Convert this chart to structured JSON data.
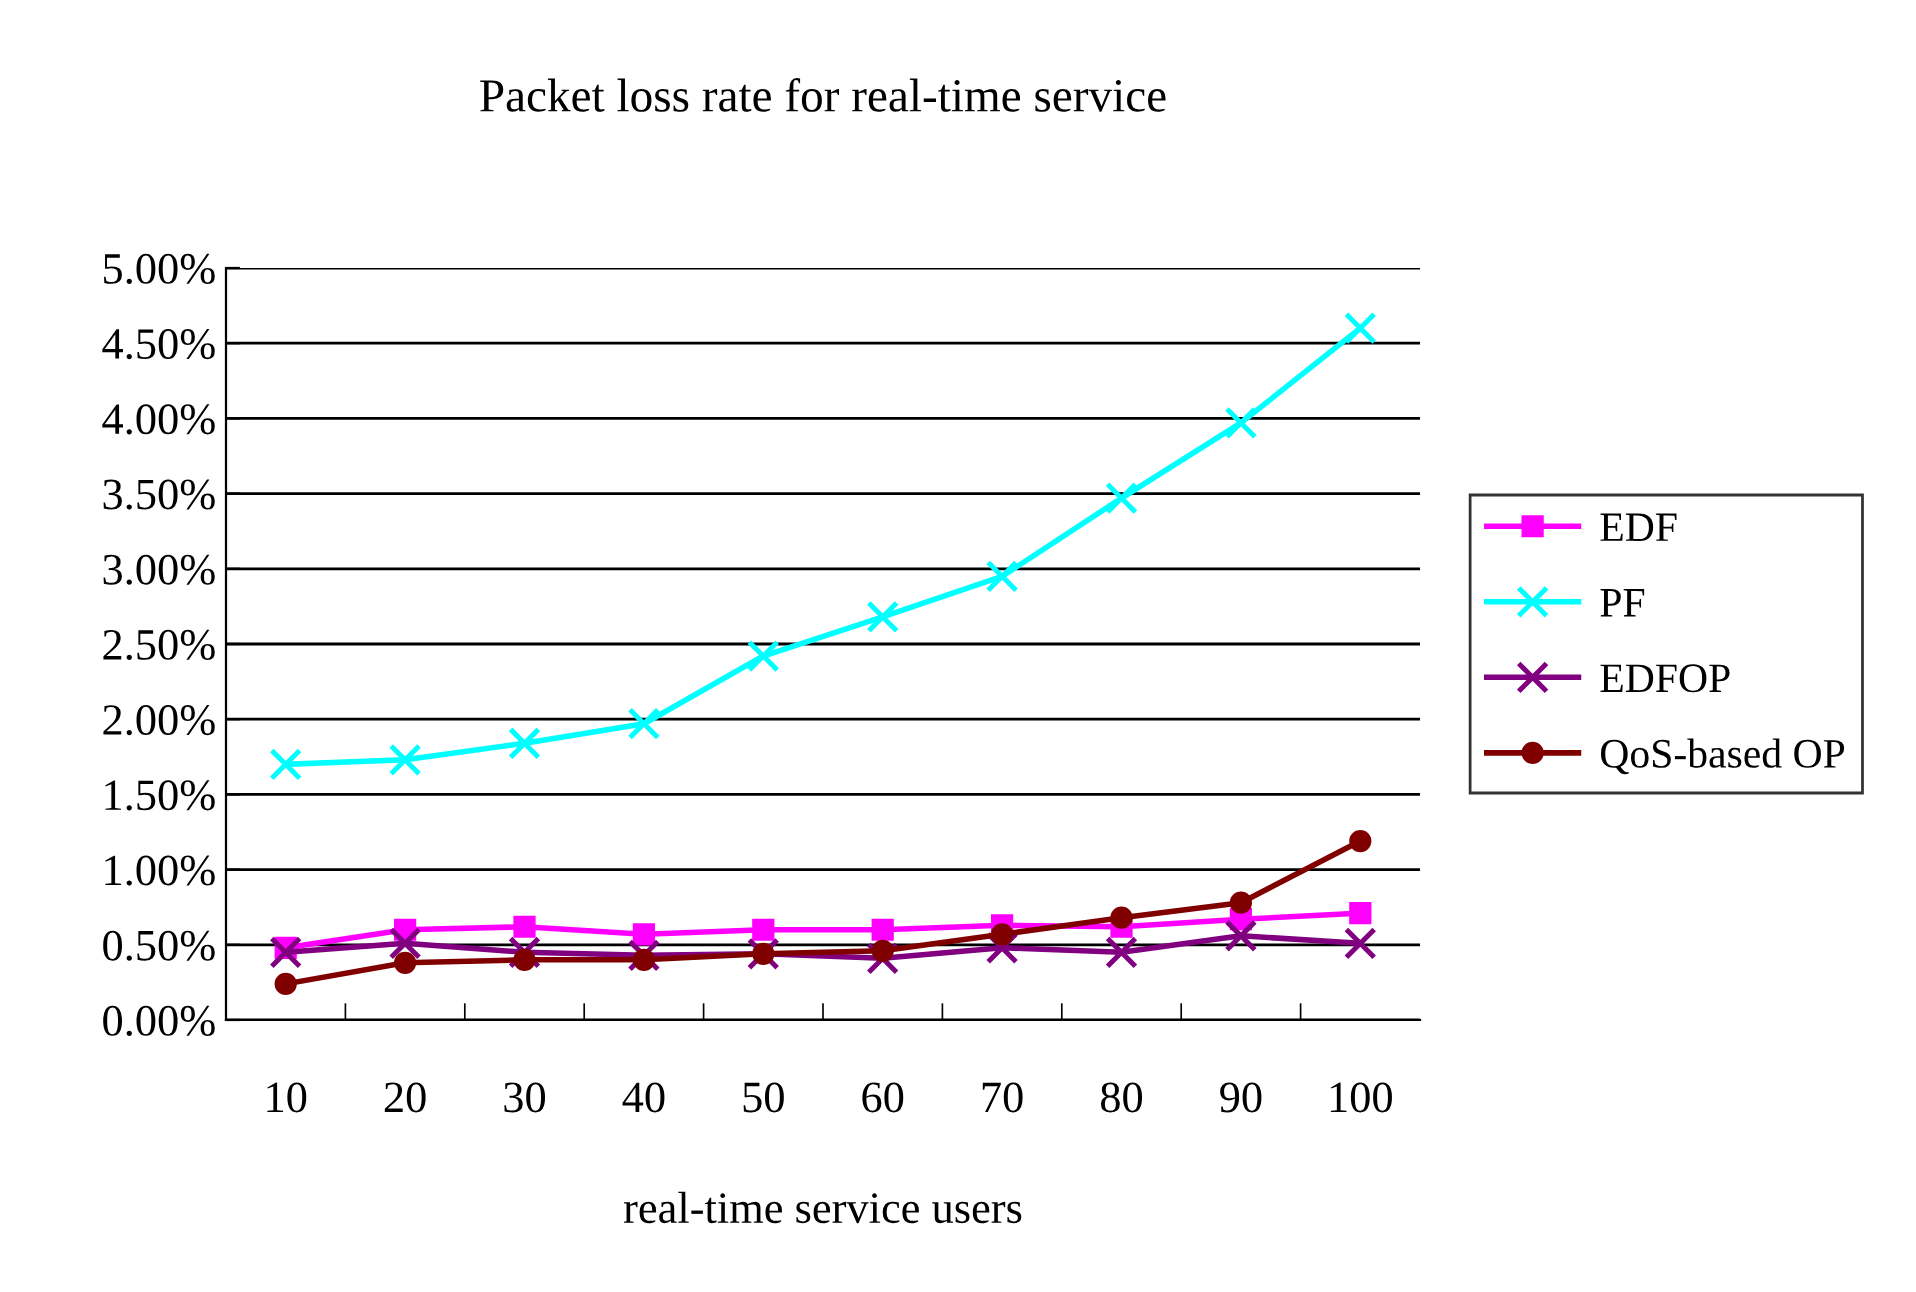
{
  "chart_data": {
    "type": "line",
    "title": "Packet loss rate for real-time service",
    "xlabel": "real-time service users",
    "categories": [
      "10",
      "20",
      "30",
      "40",
      "50",
      "60",
      "70",
      "80",
      "90",
      "100"
    ],
    "series": [
      {
        "name": "EDF",
        "color": "#ff00ff",
        "marker": "square",
        "values": [
          0.48,
          0.6,
          0.62,
          0.57,
          0.6,
          0.6,
          0.63,
          0.62,
          0.67,
          0.71
        ]
      },
      {
        "name": "PF",
        "color": "#00ffff",
        "marker": "cross",
        "values": [
          1.7,
          1.73,
          1.84,
          1.97,
          2.42,
          2.68,
          2.95,
          3.47,
          3.97,
          4.6
        ]
      },
      {
        "name": "EDFOP",
        "color": "#800080",
        "marker": "cross",
        "values": [
          0.45,
          0.51,
          0.45,
          0.43,
          0.44,
          0.41,
          0.48,
          0.45,
          0.56,
          0.51
        ]
      },
      {
        "name": "QoS-based OP",
        "color": "#800000",
        "marker": "circle",
        "values": [
          0.24,
          0.38,
          0.4,
          0.4,
          0.44,
          0.46,
          0.57,
          0.68,
          0.78,
          1.19
        ]
      }
    ],
    "ylim": [
      0,
      5
    ],
    "yticks": [
      {
        "value": 0,
        "label": "0.00%"
      },
      {
        "value": 0.5,
        "label": "0.50%"
      },
      {
        "value": 1,
        "label": "1.00%"
      },
      {
        "value": 1.5,
        "label": "1.50%"
      },
      {
        "value": 2,
        "label": "2.00%"
      },
      {
        "value": 2.5,
        "label": "2.50%"
      },
      {
        "value": 3,
        "label": "3.00%"
      },
      {
        "value": 3.5,
        "label": "3.50%"
      },
      {
        "value": 4,
        "label": "4.00%"
      },
      {
        "value": 4.5,
        "label": "4.50%"
      },
      {
        "value": 5,
        "label": "5.00%"
      }
    ],
    "grid": "y",
    "legend": "right"
  }
}
